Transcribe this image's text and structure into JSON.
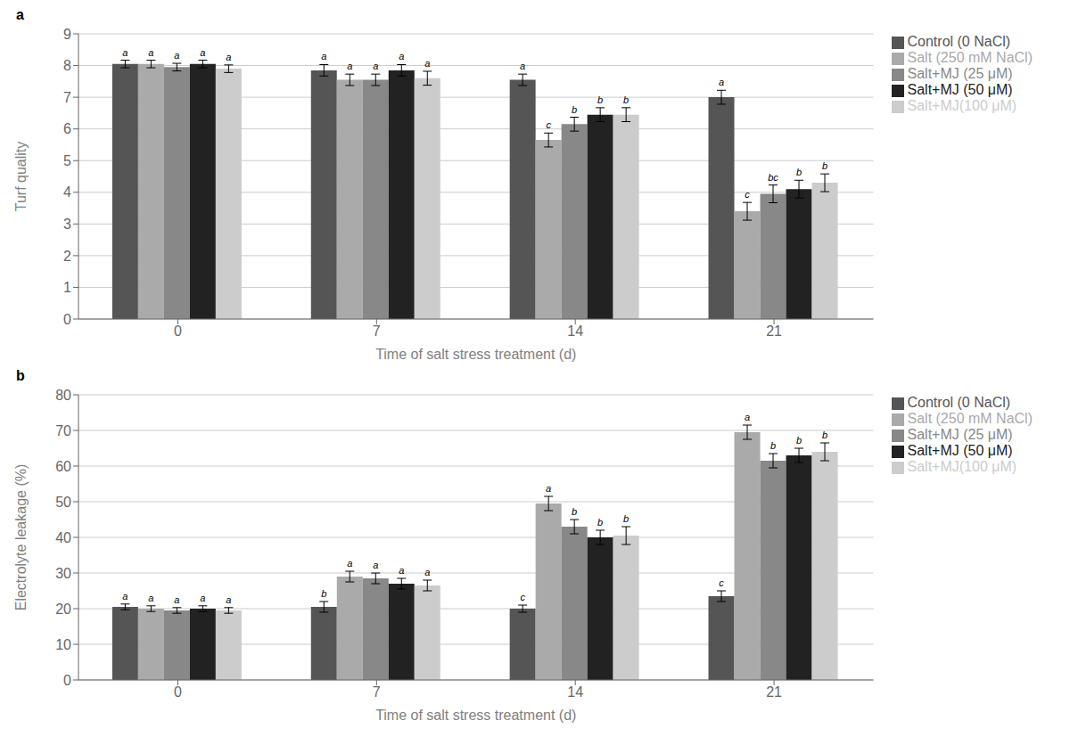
{
  "chart_data": [
    {
      "type": "bar",
      "title": "a",
      "xlabel": "Time of salt stress treatment (d)",
      "ylabel": "Turf quality",
      "categories": [
        "0",
        "7",
        "14",
        "21"
      ],
      "ylim": [
        0,
        9
      ],
      "yticks": [
        0,
        1,
        2,
        3,
        4,
        5,
        6,
        7,
        8,
        9
      ],
      "grid": true,
      "legend": "right",
      "series": [
        {
          "name": "Control (0 NaCl)",
          "color": "#555555",
          "values": [
            8.05,
            7.85,
            7.55,
            7.0
          ],
          "errors": [
            0.12,
            0.18,
            0.18,
            0.22
          ],
          "letters": [
            "a",
            "a",
            "a",
            "a"
          ]
        },
        {
          "name": "Salt (250 mM NaCl)",
          "color": "#aaaaaa",
          "values": [
            8.05,
            7.55,
            5.65,
            3.4
          ],
          "errors": [
            0.12,
            0.18,
            0.22,
            0.28
          ],
          "letters": [
            "a",
            "a",
            "c",
            "c"
          ]
        },
        {
          "name": "Salt+MJ (25 μM)",
          "color": "#888888",
          "values": [
            7.95,
            7.55,
            6.15,
            3.95
          ],
          "errors": [
            0.12,
            0.18,
            0.22,
            0.28
          ],
          "letters": [
            "a",
            "a",
            "b",
            "bc"
          ]
        },
        {
          "name": "Salt+MJ (50 μM)",
          "color": "#222222",
          "values": [
            8.05,
            7.85,
            6.45,
            4.1
          ],
          "errors": [
            0.12,
            0.18,
            0.22,
            0.28
          ],
          "letters": [
            "a",
            "a",
            "b",
            "b"
          ]
        },
        {
          "name": "Salt+MJ(100 μM)",
          "color": "#cccccc",
          "values": [
            7.9,
            7.6,
            6.45,
            4.3
          ],
          "errors": [
            0.12,
            0.22,
            0.22,
            0.28
          ],
          "letters": [
            "a",
            "a",
            "b",
            "b"
          ]
        }
      ]
    },
    {
      "type": "bar",
      "title": "b",
      "xlabel": "Time of salt stress treatment (d)",
      "ylabel": "Electrolyte leakage (%)",
      "categories": [
        "0",
        "7",
        "14",
        "21"
      ],
      "ylim": [
        0,
        80
      ],
      "yticks": [
        0,
        10,
        20,
        30,
        40,
        50,
        60,
        70,
        80
      ],
      "grid": true,
      "legend": "right",
      "series": [
        {
          "name": "Control (0 NaCl)",
          "color": "#555555",
          "values": [
            20.5,
            20.5,
            20.0,
            23.5
          ],
          "errors": [
            0.8,
            1.5,
            1.0,
            1.5
          ],
          "letters": [
            "a",
            "b",
            "c",
            "c"
          ]
        },
        {
          "name": "Salt (250 mM NaCl)",
          "color": "#aaaaaa",
          "values": [
            20.0,
            29.0,
            49.5,
            69.5
          ],
          "errors": [
            0.8,
            1.5,
            2.0,
            2.0
          ],
          "letters": [
            "a",
            "a",
            "a",
            "a"
          ]
        },
        {
          "name": "Salt+MJ (25 μM)",
          "color": "#888888",
          "values": [
            19.5,
            28.5,
            43.0,
            61.5
          ],
          "errors": [
            0.8,
            1.5,
            2.0,
            2.0
          ],
          "letters": [
            "a",
            "a",
            "b",
            "b"
          ]
        },
        {
          "name": "Salt+MJ (50 μM)",
          "color": "#222222",
          "values": [
            20.0,
            27.0,
            40.0,
            63.0
          ],
          "errors": [
            0.8,
            1.5,
            2.0,
            2.0
          ],
          "letters": [
            "a",
            "a",
            "b",
            "b"
          ]
        },
        {
          "name": "Salt+MJ(100 μM)",
          "color": "#cccccc",
          "values": [
            19.5,
            26.5,
            40.5,
            64.0
          ],
          "errors": [
            0.8,
            1.5,
            2.5,
            2.5
          ],
          "letters": [
            "a",
            "a",
            "b",
            "b"
          ]
        }
      ]
    }
  ]
}
